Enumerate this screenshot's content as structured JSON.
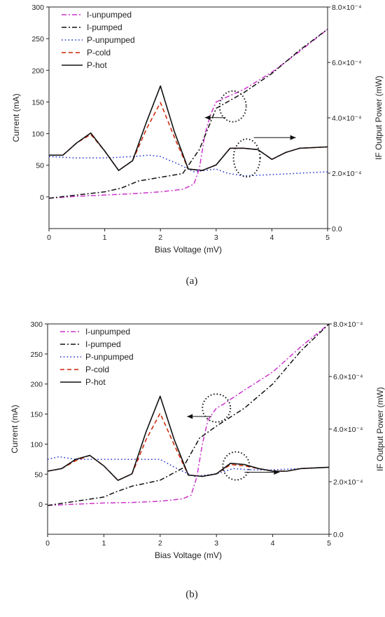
{
  "chart_data": [
    {
      "type": "line",
      "panel_label": "(a)",
      "xlabel": "Bias Voltage (mV)",
      "ylabel": "Current (mA)",
      "y2label": "IF Output Power (mW)",
      "xlim": [
        0,
        5
      ],
      "ylim": [
        -50,
        300
      ],
      "y2lim": [
        0,
        0.0008
      ],
      "x_ticks": [
        "0",
        "1",
        "2",
        "3",
        "4",
        "5"
      ],
      "y_ticks": [
        "0",
        "50",
        "100",
        "150",
        "200",
        "250",
        "300"
      ],
      "y2_ticks": [
        "0.0",
        "2.0×10⁻⁴",
        "4.0×10⁻⁴",
        "6.0×10⁻⁴",
        "8.0×10⁻⁴"
      ],
      "legend_position": "top-left",
      "grid": false,
      "series": [
        {
          "name": "I-unpumped",
          "axis": "left",
          "color": "#cc33cc",
          "dash": "dash-dot",
          "x": [
            0,
            0.5,
            1.0,
            1.5,
            2.0,
            2.4,
            2.6,
            2.7,
            2.8,
            2.9,
            3.0,
            3.5,
            4.0,
            4.5,
            5.0
          ],
          "y": [
            -2,
            1,
            3,
            5,
            8,
            12,
            20,
            45,
            100,
            130,
            150,
            170,
            197,
            230,
            265
          ]
        },
        {
          "name": "I-pumped",
          "axis": "left",
          "color": "#111111",
          "dash": "dash-dot",
          "x": [
            0,
            0.5,
            1.0,
            1.3,
            1.6,
            2.0,
            2.4,
            2.7,
            3.0,
            3.5,
            4.0,
            4.5,
            5.0
          ],
          "y": [
            -2,
            3,
            8,
            14,
            25,
            31,
            37,
            75,
            140,
            165,
            195,
            232,
            265
          ]
        },
        {
          "name": "P-unpumped",
          "axis": "right",
          "color": "#2233cc",
          "dash": "dotted",
          "x": [
            0,
            0.5,
            1.0,
            1.5,
            1.8,
            2.0,
            2.3,
            2.6,
            3.0,
            3.2,
            3.5,
            4.0,
            4.5,
            5.0
          ],
          "y": [
            0.00026,
            0.000255,
            0.000255,
            0.00026,
            0.000265,
            0.00026,
            0.000235,
            0.000205,
            0.000215,
            0.0002,
            0.00019,
            0.000195,
            0.0002,
            0.000205
          ]
        },
        {
          "name": "P-cold",
          "axis": "right",
          "color": "#cc2200",
          "dash": "dashed",
          "x": [
            0,
            0.25,
            0.5,
            0.75,
            1.0,
            1.25,
            1.5,
            1.75,
            2.0,
            2.25,
            2.5,
            2.75,
            3.0,
            3.25,
            3.5,
            3.75,
            4.0,
            4.25,
            4.5,
            5.0
          ],
          "y": [
            0.000265,
            0.000265,
            0.00031,
            0.00034,
            0.00028,
            0.00021,
            0.000245,
            0.00036,
            0.000455,
            0.00033,
            0.000215,
            0.00021,
            0.00023,
            0.00029,
            0.00029,
            0.000285,
            0.00025,
            0.000275,
            0.00029,
            0.000295
          ]
        },
        {
          "name": "P-hot",
          "axis": "right",
          "color": "#111111",
          "dash": "solid",
          "x": [
            0,
            0.25,
            0.5,
            0.75,
            1.0,
            1.25,
            1.5,
            1.75,
            2.0,
            2.25,
            2.5,
            2.75,
            3.0,
            3.25,
            3.5,
            3.75,
            4.0,
            4.25,
            4.5,
            5.0
          ],
          "y": [
            0.000265,
            0.000265,
            0.00031,
            0.000345,
            0.00028,
            0.00021,
            0.000245,
            0.000385,
            0.000515,
            0.00035,
            0.000215,
            0.00021,
            0.00023,
            0.00029,
            0.00029,
            0.000285,
            0.00025,
            0.000275,
            0.00029,
            0.000295
          ]
        }
      ],
      "annotations": [
        {
          "type": "ellipse-with-arrow",
          "direction": "left",
          "target": "current",
          "x": 3.3,
          "y": 143
        },
        {
          "type": "ellipse-with-arrow",
          "direction": "right",
          "target": "power",
          "x": 3.55,
          "y": 0.000255
        }
      ]
    },
    {
      "type": "line",
      "panel_label": "(b)",
      "xlabel": "Bias Voltage (mV)",
      "ylabel": "Current (mA)",
      "y2label": "IF Output Power (mW)",
      "xlim": [
        0,
        5
      ],
      "ylim": [
        -50,
        300
      ],
      "y2lim": [
        0,
        0.0008
      ],
      "x_ticks": [
        "0",
        "1",
        "2",
        "3",
        "4",
        "5"
      ],
      "y_ticks": [
        "0",
        "50",
        "100",
        "150",
        "200",
        "250",
        "300"
      ],
      "y2_ticks": [
        "0.0",
        "2.0×10⁻⁴",
        "4.0×10⁻⁴",
        "6.0×10⁻⁴",
        "8.0×10⁻⁴"
      ],
      "legend_position": "top-left",
      "grid": false,
      "series": [
        {
          "name": "I-unpumped",
          "axis": "left",
          "color": "#cc33cc",
          "dash": "dash-dot",
          "x": [
            0,
            0.5,
            1.0,
            1.5,
            2.0,
            2.4,
            2.55,
            2.65,
            2.75,
            2.85,
            3.0,
            3.1,
            3.5,
            4.0,
            4.5,
            5.0
          ],
          "y": [
            -2,
            0,
            2,
            3,
            5,
            9,
            15,
            45,
            100,
            140,
            160,
            165,
            190,
            220,
            262,
            300
          ]
        },
        {
          "name": "I-pumped",
          "axis": "left",
          "color": "#111111",
          "dash": "dash-dot",
          "x": [
            0,
            0.5,
            1.0,
            1.2,
            1.5,
            2.0,
            2.4,
            2.7,
            3.0,
            3.5,
            4.0,
            4.5,
            5.0
          ],
          "y": [
            -2,
            5,
            12,
            20,
            30,
            40,
            60,
            110,
            130,
            160,
            200,
            255,
            300
          ]
        },
        {
          "name": "P-unpumped",
          "axis": "right",
          "color": "#2233cc",
          "dash": "dotted",
          "x": [
            0,
            0.2,
            0.5,
            1.0,
            1.5,
            2.0,
            2.3,
            2.6,
            3.0,
            3.3,
            3.6,
            4.0,
            4.5,
            5.0
          ],
          "y": [
            0.000285,
            0.000295,
            0.000285,
            0.000285,
            0.000285,
            0.000285,
            0.00025,
            0.00022,
            0.00023,
            0.00025,
            0.000245,
            0.000245,
            0.00025,
            0.000255
          ]
        },
        {
          "name": "P-cold",
          "axis": "right",
          "color": "#cc2200",
          "dash": "dashed",
          "x": [
            0,
            0.25,
            0.5,
            0.75,
            1.0,
            1.25,
            1.5,
            1.75,
            2.0,
            2.25,
            2.5,
            2.75,
            3.0,
            3.25,
            3.5,
            3.75,
            4.0,
            4.25,
            4.5,
            5.0
          ],
          "y": [
            0.00024,
            0.00025,
            0.00028,
            0.0003,
            0.00026,
            0.000205,
            0.00023,
            0.00036,
            0.00046,
            0.00034,
            0.000225,
            0.00022,
            0.00023,
            0.000265,
            0.00026,
            0.00025,
            0.00024,
            0.00024,
            0.00025,
            0.000255
          ]
        },
        {
          "name": "P-hot",
          "axis": "right",
          "color": "#111111",
          "dash": "solid",
          "x": [
            0,
            0.25,
            0.5,
            0.75,
            1.0,
            1.25,
            1.5,
            1.75,
            2.0,
            2.25,
            2.5,
            2.75,
            3.0,
            3.25,
            3.5,
            3.75,
            4.0,
            4.25,
            4.5,
            5.0
          ],
          "y": [
            0.00024,
            0.00025,
            0.000285,
            0.0003,
            0.00026,
            0.000205,
            0.00023,
            0.00039,
            0.000525,
            0.00036,
            0.000225,
            0.00022,
            0.00023,
            0.00027,
            0.000265,
            0.00025,
            0.00024,
            0.00024,
            0.00025,
            0.000255
          ]
        }
      ],
      "annotations": [
        {
          "type": "ellipse-with-arrow",
          "direction": "left",
          "target": "current",
          "x": 3.0,
          "y": 160
        },
        {
          "type": "ellipse-with-arrow",
          "direction": "right",
          "target": "power",
          "x": 3.35,
          "y": 0.00026
        }
      ]
    }
  ]
}
